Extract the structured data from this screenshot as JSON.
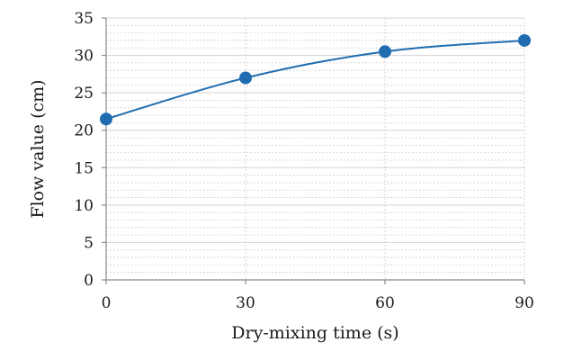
{
  "chart_data": {
    "type": "line",
    "xlabel": "Dry-mixing time (s)",
    "ylabel": "Flow value (cm)",
    "x": [
      0,
      30,
      60,
      90
    ],
    "series": [
      {
        "values": [
          21.5,
          27,
          30.5,
          32
        ],
        "color": "#1f6db0"
      }
    ],
    "xlim": [
      0,
      90
    ],
    "ylim": [
      0,
      35
    ],
    "x_ticks": [
      0,
      30,
      60,
      90
    ],
    "y_ticks": [
      0,
      5,
      10,
      15,
      20,
      25,
      30,
      35
    ],
    "y_minor_step": 1,
    "grid": true,
    "legend": "none"
  }
}
